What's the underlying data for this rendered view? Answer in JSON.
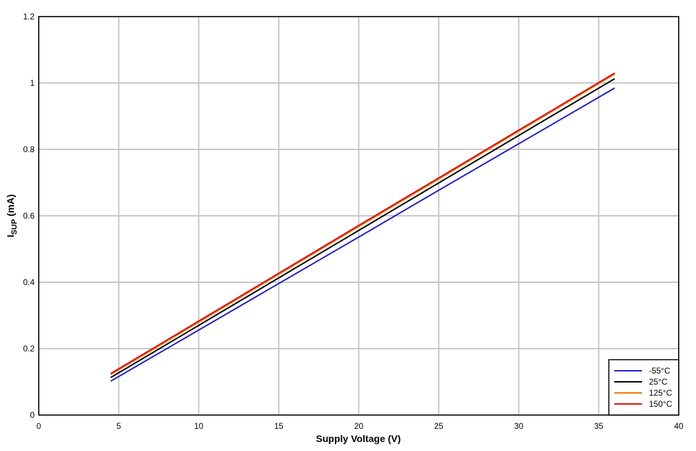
{
  "chart_data": {
    "type": "line",
    "x_label": "Supply Voltage (V)",
    "y_label": {
      "main": "I",
      "sub": "SUP",
      "unit": "(mA)"
    },
    "x": [
      4.5,
      10,
      15,
      20,
      25,
      30,
      36
    ],
    "series": [
      {
        "name": "-55°C",
        "color": "#1f1fd0",
        "values": [
          0.102,
          0.256,
          0.396,
          0.536,
          0.677,
          0.817,
          0.985
        ]
      },
      {
        "name": "25°C",
        "color": "#000000",
        "values": [
          0.113,
          0.27,
          0.413,
          0.556,
          0.699,
          0.842,
          1.013
        ]
      },
      {
        "name": "125°C",
        "color": "#f07800",
        "values": [
          0.122,
          0.28,
          0.424,
          0.568,
          0.711,
          0.855,
          1.027
        ]
      },
      {
        "name": "150°C",
        "color": "#e01010",
        "values": [
          0.125,
          0.283,
          0.427,
          0.571,
          0.714,
          0.858,
          1.03
        ]
      }
    ],
    "xlim": [
      0,
      40
    ],
    "xticks": [
      0,
      5,
      10,
      15,
      20,
      25,
      30,
      35,
      40
    ],
    "ylim": [
      0,
      1.2
    ],
    "yticks": [
      0,
      0.2,
      0.4,
      0.6,
      0.8,
      1,
      1.2
    ],
    "grid": true,
    "legend": "lower right"
  }
}
